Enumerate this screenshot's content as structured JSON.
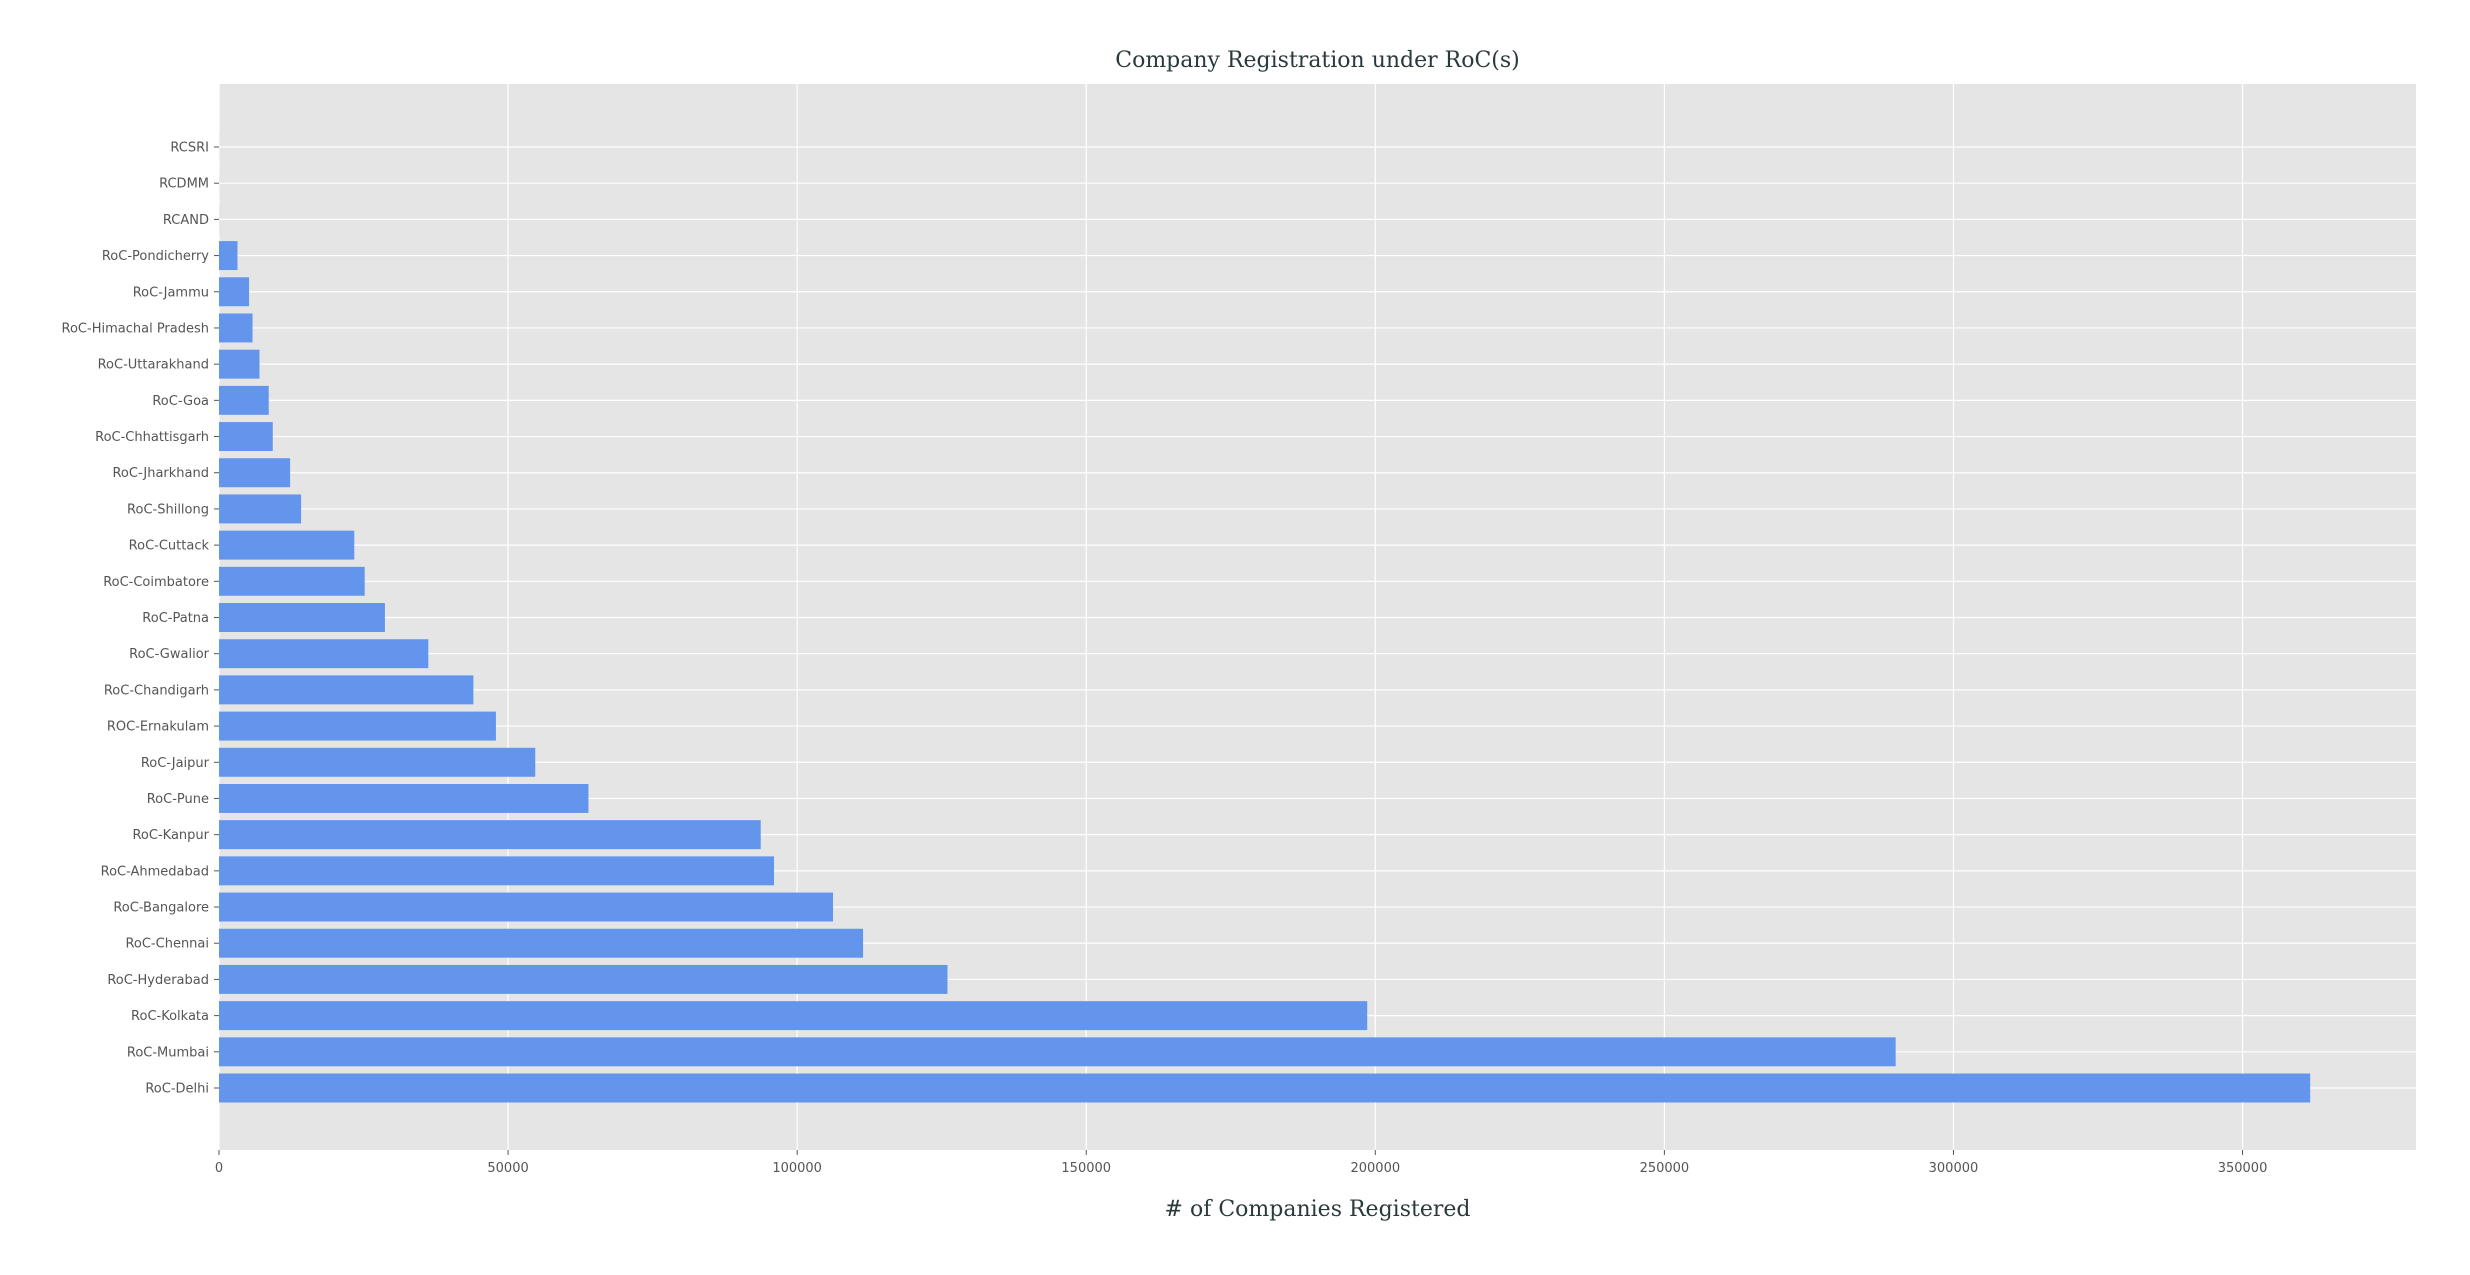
{
  "chart_data": {
    "type": "bar",
    "orientation": "horizontal",
    "title": "Company Registration under RoC(s)",
    "xlabel": "# of Companies Registered",
    "ylabel": "",
    "xlim": [
      0,
      380000
    ],
    "xticks": [
      0,
      50000,
      100000,
      150000,
      200000,
      250000,
      300000,
      350000
    ],
    "grid": true,
    "bar_color": "#6495ED",
    "background_color": "#E5E5E5",
    "categories": [
      "RCSRI",
      "RCDMM",
      "RCAND",
      "RoC-Pondicherry",
      "RoC-Jammu",
      "RoC-Himachal Pradesh",
      "RoC-Uttarakhand",
      "RoC-Goa",
      "RoC-Chhattisgarh",
      "RoC-Jharkhand",
      "RoC-Shillong",
      "RoC-Cuttack",
      "RoC-Coimbatore",
      "RoC-Patna",
      "RoC-Gwalior",
      "RoC-Chandigarh",
      "ROC-Ernakulam",
      "RoC-Jaipur",
      "RoC-Pune",
      "RoC-Kanpur",
      "RoC-Ahmedabad",
      "RoC-Bangalore",
      "RoC-Chennai",
      "RoC-Hyderabad",
      "RoC-Kolkata",
      "RoC-Mumbai",
      "RoC-Delhi"
    ],
    "values": [
      10,
      10,
      20,
      3200,
      5200,
      5800,
      7000,
      8600,
      9300,
      12300,
      14200,
      23400,
      25200,
      28700,
      36200,
      44000,
      47900,
      54700,
      63900,
      93700,
      96000,
      106200,
      111400,
      126000,
      198600,
      290000,
      361700
    ]
  }
}
